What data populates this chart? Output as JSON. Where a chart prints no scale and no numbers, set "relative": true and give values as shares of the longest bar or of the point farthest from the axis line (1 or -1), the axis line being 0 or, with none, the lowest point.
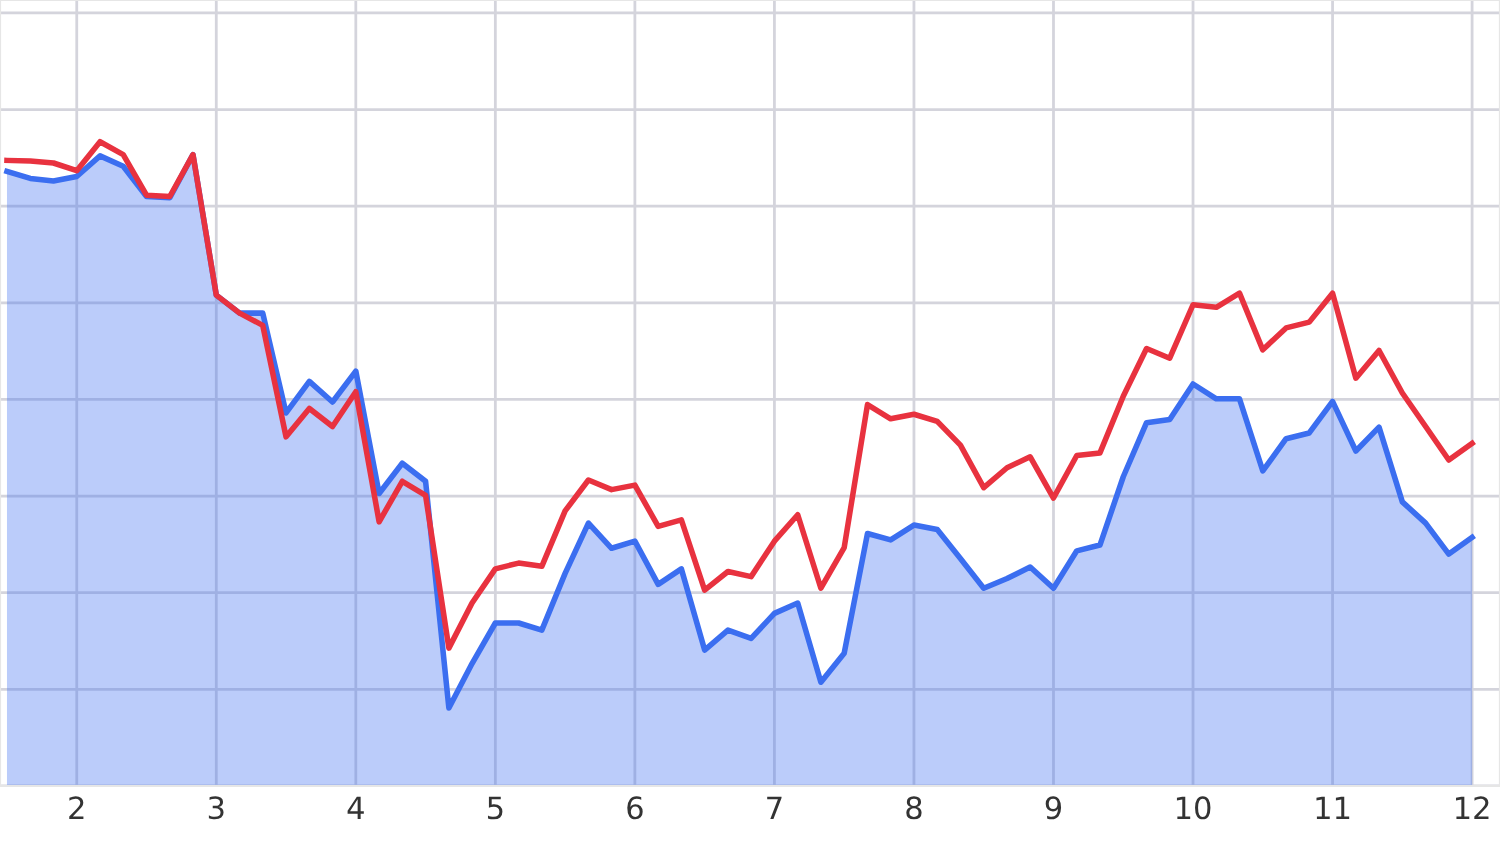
{
  "chart_data": {
    "type": "line",
    "relative": true,
    "grid": true,
    "tick_labels": "x",
    "xlim": [
      1.45,
      12.2
    ],
    "xticks": [
      2,
      3,
      4,
      5,
      6,
      7,
      8,
      9,
      10,
      11,
      12
    ],
    "x": [
      1.5,
      1.667,
      1.833,
      2.0,
      2.167,
      2.333,
      2.5,
      2.667,
      2.833,
      3.0,
      3.167,
      3.333,
      3.5,
      3.667,
      3.833,
      4.0,
      4.167,
      4.333,
      4.5,
      4.667,
      4.833,
      5.0,
      5.167,
      5.333,
      5.5,
      5.667,
      5.833,
      6.0,
      6.167,
      6.333,
      6.5,
      6.667,
      6.833,
      7.0,
      7.167,
      7.333,
      7.5,
      7.667,
      7.833,
      8.0,
      8.167,
      8.333,
      8.5,
      8.667,
      8.833,
      9.0,
      9.167,
      9.333,
      9.5,
      9.667,
      9.833,
      10.0,
      10.167,
      10.333,
      10.5,
      10.667,
      10.833,
      11.0,
      11.167,
      11.333,
      11.5,
      11.667,
      11.833,
      12.0
    ],
    "series": [
      {
        "type": "area",
        "color": "#3b6ef0",
        "values": [
          0.954,
          0.943,
          0.939,
          0.946,
          0.978,
          0.962,
          0.915,
          0.913,
          0.98,
          0.762,
          0.734,
          0.734,
          0.579,
          0.628,
          0.596,
          0.644,
          0.454,
          0.501,
          0.473,
          0.121,
          0.19,
          0.253,
          0.253,
          0.242,
          0.33,
          0.408,
          0.369,
          0.38,
          0.313,
          0.337,
          0.211,
          0.242,
          0.229,
          0.268,
          0.284,
          0.161,
          0.206,
          0.392,
          0.382,
          0.405,
          0.398,
          0.353,
          0.307,
          0.322,
          0.34,
          0.307,
          0.365,
          0.374,
          0.48,
          0.564,
          0.569,
          0.624,
          0.601,
          0.601,
          0.489,
          0.539,
          0.548,
          0.597,
          0.52,
          0.557,
          0.441,
          0.408,
          0.36,
          0.386
        ]
      },
      {
        "color": "#e8323f",
        "values": [
          0.971,
          0.97,
          0.967,
          0.955,
          1.0,
          0.98,
          0.917,
          0.915,
          0.98,
          0.762,
          0.734,
          0.715,
          0.542,
          0.586,
          0.558,
          0.612,
          0.41,
          0.473,
          0.451,
          0.214,
          0.284,
          0.337,
          0.346,
          0.341,
          0.427,
          0.475,
          0.46,
          0.467,
          0.403,
          0.413,
          0.304,
          0.333,
          0.325,
          0.38,
          0.421,
          0.307,
          0.37,
          0.592,
          0.57,
          0.577,
          0.566,
          0.529,
          0.463,
          0.494,
          0.511,
          0.447,
          0.513,
          0.517,
          0.605,
          0.679,
          0.664,
          0.747,
          0.743,
          0.765,
          0.677,
          0.711,
          0.72,
          0.765,
          0.633,
          0.676,
          0.61,
          0.558,
          0.506,
          0.532
        ]
      }
    ]
  }
}
